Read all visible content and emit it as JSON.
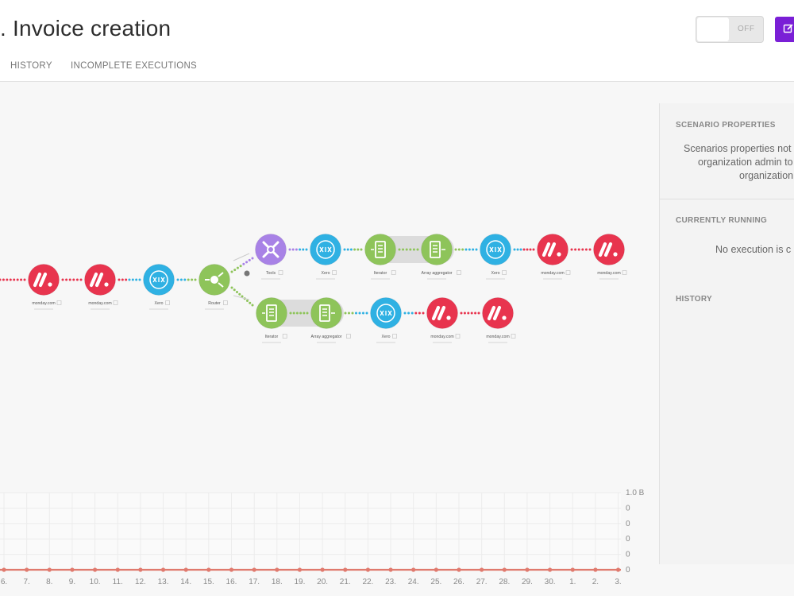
{
  "header": {
    "title": ". Invoice creation",
    "tabs": [
      "HISTORY",
      "INCOMPLETE EXECUTIONS"
    ],
    "toggle_label": "OFF"
  },
  "panel": {
    "scenario_properties_title": "SCENARIO PROPERTIES",
    "scenario_properties_lines": [
      "Scenarios properties not",
      "organization admin to",
      "organization"
    ],
    "currently_running_title": "CURRENTLY RUNNING",
    "currently_running_text": "No execution is c",
    "history_title": "HISTORY"
  },
  "flow": {
    "colors": {
      "monday": "#e8344e",
      "blue": "#2fb1e3",
      "green": "#8ec45a",
      "purple": "#a882e6"
    },
    "modules": [
      {
        "id": "m1",
        "kind": "monday",
        "icon": "monday-icon",
        "label": "monday.com"
      },
      {
        "id": "m2",
        "kind": "monday",
        "icon": "monday-icon",
        "label": "monday.com"
      },
      {
        "id": "x1",
        "kind": "blue",
        "icon": "xero-icon",
        "label": "Xero"
      },
      {
        "id": "r1",
        "kind": "green",
        "icon": "router-icon",
        "label": "Router"
      },
      {
        "id": "t1",
        "kind": "purple",
        "icon": "tools-icon",
        "label": "Tools"
      },
      {
        "id": "x2",
        "kind": "blue",
        "icon": "xero-icon",
        "label": "Xero"
      },
      {
        "id": "it1",
        "kind": "green",
        "icon": "iterator-icon",
        "label": "Iterator"
      },
      {
        "id": "ag1",
        "kind": "green",
        "icon": "aggregator-icon",
        "label": "Array aggregator"
      },
      {
        "id": "x3",
        "kind": "blue",
        "icon": "xero-icon",
        "label": "Xero"
      },
      {
        "id": "m3",
        "kind": "monday",
        "icon": "monday-icon",
        "label": "monday.com"
      },
      {
        "id": "m4",
        "kind": "monday",
        "icon": "monday-icon",
        "label": "monday.com"
      },
      {
        "id": "it2",
        "kind": "green",
        "icon": "iterator-icon",
        "label": "Iterator"
      },
      {
        "id": "ag2",
        "kind": "green",
        "icon": "aggregator-icon",
        "label": "Array aggregator"
      },
      {
        "id": "x4",
        "kind": "blue",
        "icon": "xero-icon",
        "label": "Xero"
      },
      {
        "id": "m5",
        "kind": "monday",
        "icon": "monday-icon",
        "label": "monday.com"
      },
      {
        "id": "m6",
        "kind": "monday",
        "icon": "monday-icon",
        "label": "monday.com"
      }
    ]
  },
  "chart_data": {
    "type": "line",
    "categories": [
      "6.",
      "7.",
      "8.",
      "9.",
      "10.",
      "11.",
      "12.",
      "13.",
      "14.",
      "15.",
      "16.",
      "17.",
      "18.",
      "19.",
      "20.",
      "21.",
      "22.",
      "23.",
      "24.",
      "25.",
      "26.",
      "27.",
      "28.",
      "29.",
      "30.",
      "1.",
      "2.",
      "3."
    ],
    "series": [
      {
        "values": [
          0,
          0,
          0,
          0,
          0,
          0,
          0,
          0,
          0,
          0,
          0,
          0,
          0,
          0,
          0,
          0,
          0,
          0,
          0,
          0,
          0,
          0,
          0,
          0,
          0,
          0,
          0,
          0
        ],
        "color": "#e07a6e"
      }
    ],
    "y_tick_labels": [
      "1.0 B",
      "0",
      "0",
      "0",
      "0",
      "0"
    ],
    "grid": true
  }
}
